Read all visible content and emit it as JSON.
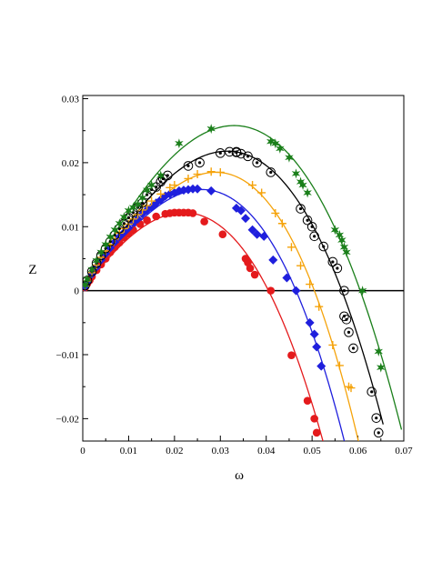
{
  "chart_data": {
    "type": "scatter",
    "title": "",
    "xlabel": "ω",
    "ylabel": "Z",
    "xlim": [
      0,
      0.07
    ],
    "ylim": [
      -0.0235,
      0.0305
    ],
    "xticks": [
      0,
      0.01,
      0.02,
      0.03,
      0.04,
      0.05,
      0.06,
      0.07
    ],
    "xtick_labels": [
      "0",
      "0.01",
      "0.02",
      "0.03",
      "0.04",
      "0.05",
      "0.06",
      "0.07"
    ],
    "yticks": [
      -0.02,
      -0.01,
      0,
      0.01,
      0.02,
      0.03
    ],
    "ytick_labels": [
      "−0.02",
      "−0.01",
      "0",
      "0.01",
      "0.02",
      "0.03"
    ],
    "grid": false,
    "series": [
      {
        "color": "#e41a1c",
        "marker": "filled-circle",
        "curve": {
          "peak_x": 0.022,
          "peak_y": 0.0122,
          "zero_x": 0.0405,
          "x_end": 0.0525
        },
        "points": [
          [
            0.0005,
            0.0005
          ],
          [
            0.001,
            0.0011
          ],
          [
            0.0015,
            0.0016
          ],
          [
            0.002,
            0.0022
          ],
          [
            0.003,
            0.0032
          ],
          [
            0.004,
            0.0041
          ],
          [
            0.005,
            0.005
          ],
          [
            0.006,
            0.006
          ],
          [
            0.007,
            0.0068
          ],
          [
            0.008,
            0.0075
          ],
          [
            0.009,
            0.0083
          ],
          [
            0.01,
            0.0089
          ],
          [
            0.011,
            0.0095
          ],
          [
            0.0125,
            0.0104
          ],
          [
            0.014,
            0.011
          ],
          [
            0.016,
            0.0116
          ],
          [
            0.018,
            0.012
          ],
          [
            0.019,
            0.0121
          ],
          [
            0.02,
            0.0122
          ],
          [
            0.021,
            0.0122
          ],
          [
            0.022,
            0.0122
          ],
          [
            0.023,
            0.0122
          ],
          [
            0.024,
            0.0121
          ],
          [
            0.0265,
            0.0108
          ],
          [
            0.0305,
            0.0088
          ],
          [
            0.0355,
            0.005
          ],
          [
            0.036,
            0.0044
          ],
          [
            0.0365,
            0.0035
          ],
          [
            0.0375,
            0.0025
          ],
          [
            0.041,
            -0.0
          ],
          [
            0.0455,
            -0.0101
          ],
          [
            0.049,
            -0.0172
          ],
          [
            0.0505,
            -0.02
          ],
          [
            0.051,
            -0.0222
          ]
        ]
      },
      {
        "color": "#1f1fdd",
        "marker": "filled-diamond",
        "curve": {
          "peak_x": 0.026,
          "peak_y": 0.0158,
          "zero_x": 0.0465,
          "x_end": 0.0575
        },
        "points": [
          [
            0.0005,
            0.0006
          ],
          [
            0.001,
            0.0013
          ],
          [
            0.002,
            0.0026
          ],
          [
            0.003,
            0.0037
          ],
          [
            0.004,
            0.0048
          ],
          [
            0.005,
            0.0058
          ],
          [
            0.006,
            0.0067
          ],
          [
            0.007,
            0.0076
          ],
          [
            0.008,
            0.0084
          ],
          [
            0.009,
            0.0091
          ],
          [
            0.01,
            0.0098
          ],
          [
            0.011,
            0.0106
          ],
          [
            0.012,
            0.0112
          ],
          [
            0.013,
            0.012
          ],
          [
            0.014,
            0.0126
          ],
          [
            0.015,
            0.0131
          ],
          [
            0.016,
            0.0137
          ],
          [
            0.017,
            0.0142
          ],
          [
            0.018,
            0.0148
          ],
          [
            0.019,
            0.0151
          ],
          [
            0.02,
            0.0153
          ],
          [
            0.021,
            0.0156
          ],
          [
            0.022,
            0.0157
          ],
          [
            0.023,
            0.0158
          ],
          [
            0.024,
            0.0159
          ],
          [
            0.025,
            0.0159
          ],
          [
            0.028,
            0.0156
          ],
          [
            0.0335,
            0.0129
          ],
          [
            0.0345,
            0.0125
          ],
          [
            0.0355,
            0.0113
          ],
          [
            0.037,
            0.0095
          ],
          [
            0.038,
            0.0088
          ],
          [
            0.0395,
            0.0085
          ],
          [
            0.0415,
            0.0048
          ],
          [
            0.0445,
            0.002
          ],
          [
            0.0465,
            -0.0
          ],
          [
            0.0495,
            -0.005
          ],
          [
            0.0505,
            -0.0068
          ],
          [
            0.051,
            -0.0088
          ],
          [
            0.052,
            -0.0118
          ]
        ]
      },
      {
        "color": "#f5a30b",
        "marker": "plus",
        "curve": {
          "peak_x": 0.029,
          "peak_y": 0.0185,
          "zero_x": 0.0505,
          "x_end": 0.0605
        },
        "points": [
          [
            0.0005,
            0.0007
          ],
          [
            0.001,
            0.0015
          ],
          [
            0.002,
            0.0028
          ],
          [
            0.003,
            0.004
          ],
          [
            0.004,
            0.0052
          ],
          [
            0.005,
            0.0062
          ],
          [
            0.006,
            0.0072
          ],
          [
            0.007,
            0.0081
          ],
          [
            0.008,
            0.009
          ],
          [
            0.009,
            0.0097
          ],
          [
            0.01,
            0.0104
          ],
          [
            0.011,
            0.0112
          ],
          [
            0.012,
            0.0119
          ],
          [
            0.013,
            0.0126
          ],
          [
            0.014,
            0.0133
          ],
          [
            0.015,
            0.014
          ],
          [
            0.017,
            0.0151
          ],
          [
            0.019,
            0.0161
          ],
          [
            0.02,
            0.0165
          ],
          [
            0.023,
            0.0175
          ],
          [
            0.025,
            0.0182
          ],
          [
            0.028,
            0.0186
          ],
          [
            0.03,
            0.0185
          ],
          [
            0.037,
            0.0165
          ],
          [
            0.039,
            0.0153
          ],
          [
            0.042,
            0.0121
          ],
          [
            0.0435,
            0.0105
          ],
          [
            0.0455,
            0.0068
          ],
          [
            0.0475,
            0.0039
          ],
          [
            0.0495,
            0.001
          ],
          [
            0.0515,
            -0.0025
          ],
          [
            0.0545,
            -0.0085
          ],
          [
            0.056,
            -0.0117
          ],
          [
            0.058,
            -0.015
          ],
          [
            0.0585,
            -0.0152
          ]
        ]
      },
      {
        "color": "#000000",
        "marker": "circle-dot",
        "curve": {
          "peak_x": 0.0315,
          "peak_y": 0.0218,
          "zero_x": 0.0565,
          "x_end": 0.0655
        },
        "points": [
          [
            0.0005,
            0.0008
          ],
          [
            0.001,
            0.0016
          ],
          [
            0.002,
            0.003
          ],
          [
            0.003,
            0.0043
          ],
          [
            0.004,
            0.0055
          ],
          [
            0.005,
            0.0066
          ],
          [
            0.006,
            0.0077
          ],
          [
            0.007,
            0.0087
          ],
          [
            0.008,
            0.0097
          ],
          [
            0.009,
            0.0105
          ],
          [
            0.01,
            0.0114
          ],
          [
            0.011,
            0.0122
          ],
          [
            0.012,
            0.013
          ],
          [
            0.013,
            0.0137
          ],
          [
            0.014,
            0.015
          ],
          [
            0.015,
            0.0158
          ],
          [
            0.016,
            0.0162
          ],
          [
            0.017,
            0.017
          ],
          [
            0.0175,
            0.0175
          ],
          [
            0.0185,
            0.018
          ],
          [
            0.023,
            0.0195
          ],
          [
            0.0255,
            0.02
          ],
          [
            0.03,
            0.0215
          ],
          [
            0.032,
            0.0217
          ],
          [
            0.0335,
            0.0217
          ],
          [
            0.0335,
            0.0216
          ],
          [
            0.0345,
            0.0214
          ],
          [
            0.036,
            0.021
          ],
          [
            0.038,
            0.02
          ],
          [
            0.041,
            0.0185
          ],
          [
            0.0475,
            0.0128
          ],
          [
            0.049,
            0.011
          ],
          [
            0.05,
            0.01
          ],
          [
            0.0505,
            0.0085
          ],
          [
            0.0525,
            0.0069
          ],
          [
            0.0545,
            0.0045
          ],
          [
            0.0555,
            0.0035
          ],
          [
            0.057,
            0.0
          ],
          [
            0.057,
            -0.004
          ],
          [
            0.0575,
            -0.0045
          ],
          [
            0.058,
            -0.0065
          ],
          [
            0.059,
            -0.009
          ],
          [
            0.063,
            -0.0158
          ],
          [
            0.064,
            -0.0199
          ],
          [
            0.0645,
            -0.0222
          ]
        ]
      },
      {
        "color": "#1a7f1a",
        "marker": "star",
        "curve": {
          "peak_x": 0.033,
          "peak_y": 0.0258,
          "zero_x": 0.0605,
          "x_end": 0.0695
        },
        "points": [
          [
            0.0005,
            0.0009
          ],
          [
            0.001,
            0.0018
          ],
          [
            0.002,
            0.0033
          ],
          [
            0.003,
            0.0047
          ],
          [
            0.004,
            0.006
          ],
          [
            0.005,
            0.0072
          ],
          [
            0.006,
            0.0084
          ],
          [
            0.007,
            0.0095
          ],
          [
            0.008,
            0.0105
          ],
          [
            0.009,
            0.0115
          ],
          [
            0.01,
            0.0125
          ],
          [
            0.011,
            0.013
          ],
          [
            0.012,
            0.0135
          ],
          [
            0.013,
            0.0145
          ],
          [
            0.014,
            0.0157
          ],
          [
            0.015,
            0.0165
          ],
          [
            0.017,
            0.018
          ],
          [
            0.021,
            0.023
          ],
          [
            0.028,
            0.0253
          ],
          [
            0.041,
            0.0233
          ],
          [
            0.042,
            0.023
          ],
          [
            0.043,
            0.0222
          ],
          [
            0.045,
            0.0208
          ],
          [
            0.0465,
            0.0183
          ],
          [
            0.0475,
            0.017
          ],
          [
            0.048,
            0.0165
          ],
          [
            0.049,
            0.0153
          ],
          [
            0.055,
            0.0095
          ],
          [
            0.056,
            0.0087
          ],
          [
            0.0565,
            0.0079
          ],
          [
            0.057,
            0.0068
          ],
          [
            0.0575,
            0.006
          ],
          [
            0.061,
            0.0
          ],
          [
            0.0645,
            -0.0095
          ],
          [
            0.065,
            -0.012
          ]
        ]
      }
    ]
  }
}
